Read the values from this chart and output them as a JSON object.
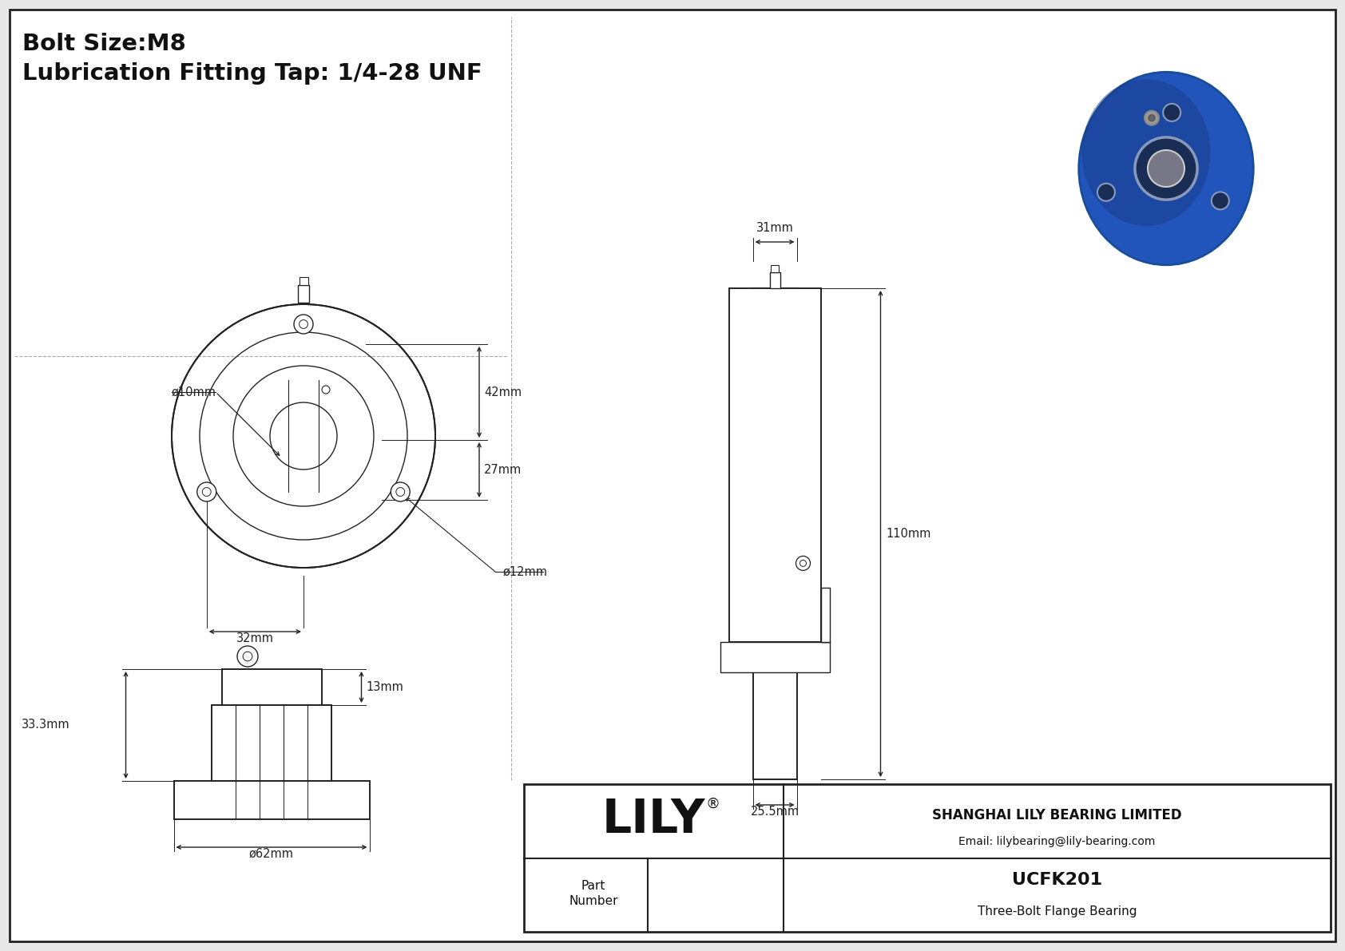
{
  "bg_color": "#e8e8e8",
  "line_color": "#222222",
  "title_line1": "Bolt Size:M8",
  "title_line2": "Lubrication Fitting Tap: 1/4-28 UNF",
  "company": "SHANGHAI LILY BEARING LIMITED",
  "email": "Email: lilybearing@lily-bearing.com",
  "part_number_label": "Part\nNumber",
  "part_number": "UCFK201",
  "part_desc": "Three-Bolt Flange Bearing",
  "lily_logo": "LILY",
  "dims": {
    "d_bore": "ø10mm",
    "d_bolt": "ø12mm",
    "h_top": "42mm",
    "h_mid": "27mm",
    "w_base": "32mm",
    "side_width": "31mm",
    "side_height": "110mm",
    "side_bottom": "25.5mm",
    "front_height": "33.3mm",
    "front_width": "ø62mm",
    "front_top": "13mm"
  }
}
